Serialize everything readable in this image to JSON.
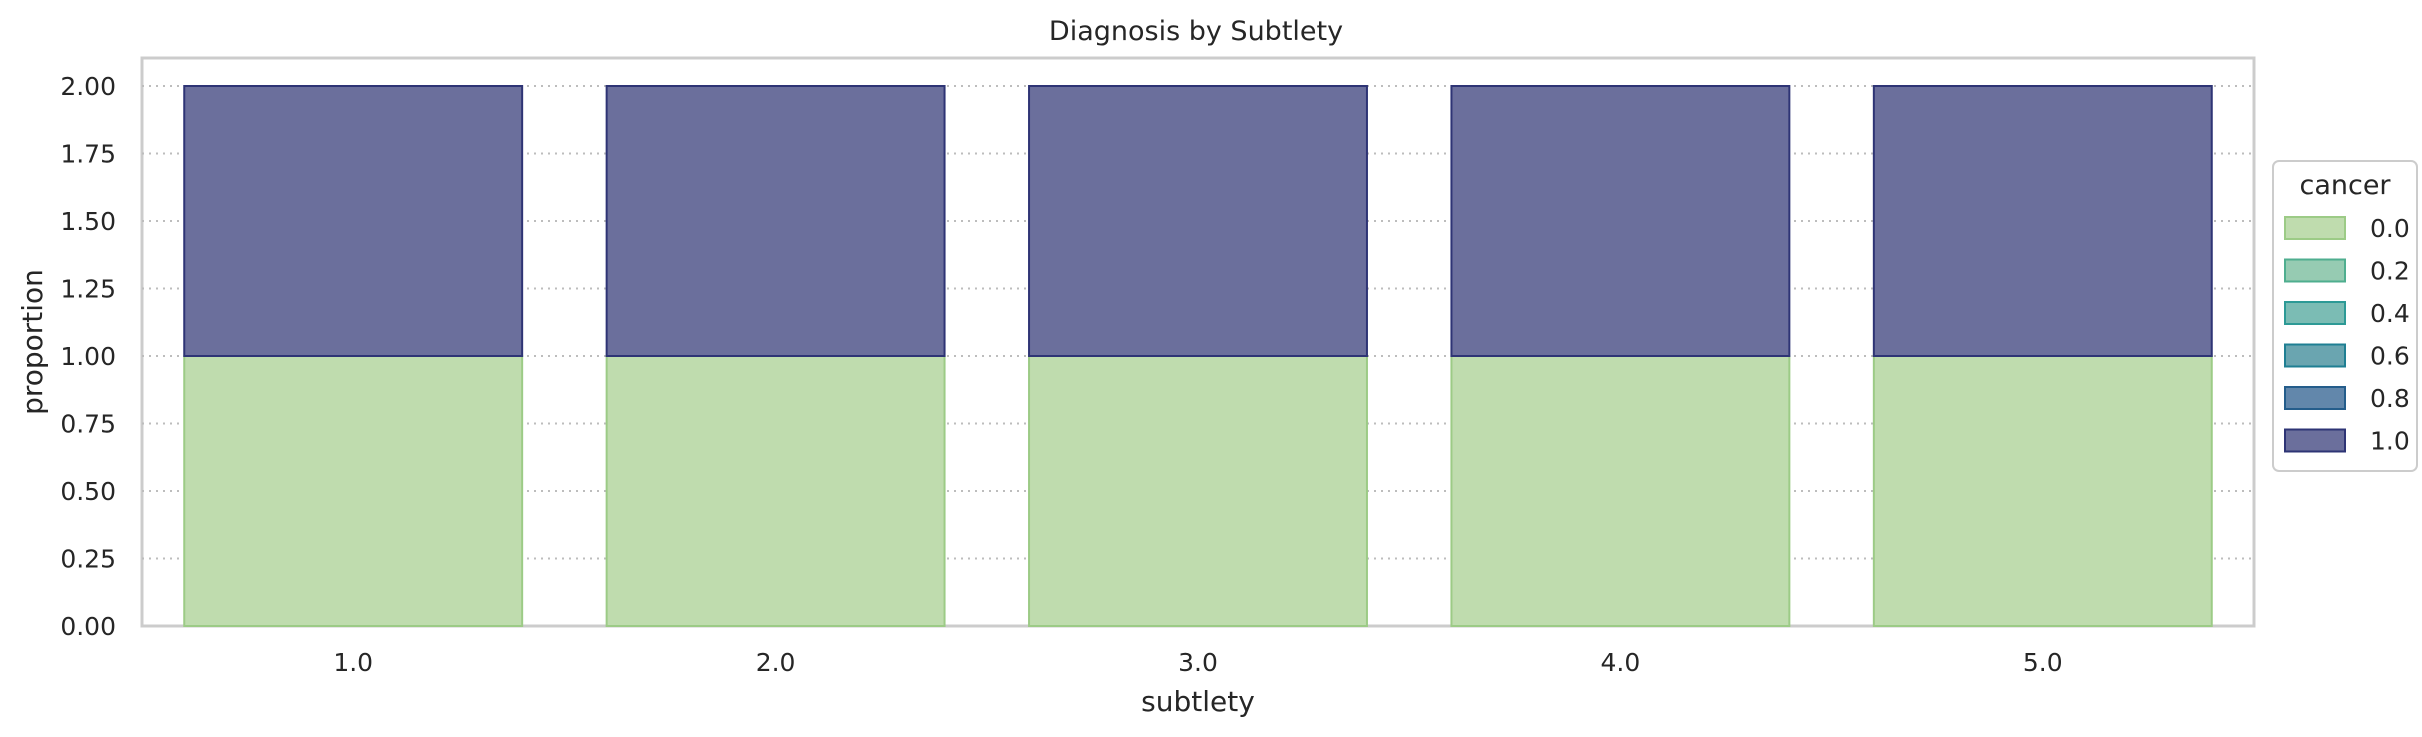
{
  "chart_data": {
    "type": "bar",
    "stacked": true,
    "title": "Diagnosis by Subtlety",
    "xlabel": "subtlety",
    "ylabel": "proportion",
    "categories": [
      "1.0",
      "2.0",
      "3.0",
      "4.0",
      "5.0"
    ],
    "ylim": [
      0,
      2.0
    ],
    "yticks": [
      "0.00",
      "0.25",
      "0.50",
      "0.75",
      "1.00",
      "1.25",
      "1.50",
      "1.75",
      "2.00"
    ],
    "grid": "horizontal dotted",
    "series": [
      {
        "name": "0.0",
        "values": [
          1,
          1,
          1,
          1,
          1
        ],
        "color": "#bfdcae",
        "edge": "#9ccb86"
      },
      {
        "name": "1.0",
        "values": [
          1,
          1,
          1,
          1,
          1
        ],
        "color": "#6b6f9c",
        "edge": "#2e3475"
      }
    ],
    "legend": {
      "title": "cancer",
      "placement": "right",
      "entries": [
        {
          "label": "0.0",
          "color": "#bfdcae",
          "edge": "#9ccb86"
        },
        {
          "label": "0.2",
          "color": "#96cbb2",
          "edge": "#4fae8f"
        },
        {
          "label": "0.4",
          "color": "#7bbcb4",
          "edge": "#2d9a96"
        },
        {
          "label": "0.6",
          "color": "#6aa5b0",
          "edge": "#1f7f93"
        },
        {
          "label": "0.8",
          "color": "#6287ab",
          "edge": "#245d8b"
        },
        {
          "label": "1.0",
          "color": "#6b6f9c",
          "edge": "#2e3475"
        }
      ]
    }
  }
}
